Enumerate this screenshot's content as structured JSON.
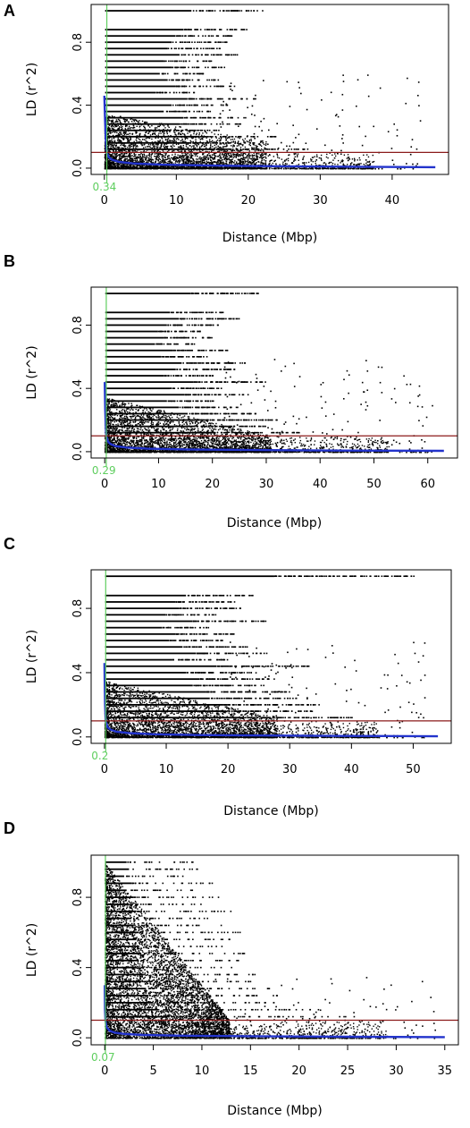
{
  "figure": {
    "panels": [
      "A",
      "B",
      "C",
      "D"
    ]
  },
  "colors": {
    "points": "#000000",
    "decay_curve": "#2233cc",
    "threshold_line": "#8b1a1a",
    "decay_distance_line": "#5fce5f",
    "axes": "#000000"
  },
  "chart_data": [
    {
      "panel": "A",
      "type": "scatter",
      "xlabel": "Distance (Mbp)",
      "ylabel": "LD (r^2)",
      "xlim": [
        0,
        46
      ],
      "ylim": [
        0,
        1
      ],
      "xticks": [
        0,
        10,
        20,
        30,
        40
      ],
      "yticks": [
        0.0,
        0.4,
        0.8
      ],
      "threshold_r2": 0.1,
      "decay_distance": 0.34,
      "decay_label": "0.34",
      "series": [
        {
          "kind": "points",
          "color": "#000000",
          "dense_until_mbp": 16,
          "tail_max_mbp": 44,
          "band_levels_r2": [
            1.0,
            0.88,
            0.84,
            0.8,
            0.76,
            0.72,
            0.68,
            0.64,
            0.6,
            0.56,
            0.52,
            0.48,
            0.44,
            0.4,
            0.36,
            0.32,
            0.28,
            0.24,
            0.2,
            0.16,
            0.12
          ],
          "band_extent_mbp": [
            22,
            20,
            18,
            17,
            16,
            19,
            15,
            17,
            14,
            16,
            18,
            13,
            21,
            17,
            15,
            20,
            19,
            16,
            24,
            22,
            28
          ]
        },
        {
          "kind": "fitted_curve",
          "color": "#2233cc",
          "x": [
            0.0,
            0.1,
            0.2,
            0.34,
            0.6,
            1,
            2,
            4,
            8,
            15,
            25,
            35,
            46
          ],
          "y": [
            0.46,
            0.3,
            0.18,
            0.1,
            0.07,
            0.055,
            0.04,
            0.03,
            0.022,
            0.016,
            0.012,
            0.009,
            0.006
          ]
        }
      ]
    },
    {
      "panel": "B",
      "type": "scatter",
      "xlabel": "Distance (Mbp)",
      "ylabel": "LD (r^2)",
      "xlim": [
        0,
        63
      ],
      "ylim": [
        0,
        1
      ],
      "xticks": [
        0,
        10,
        20,
        30,
        40,
        50,
        60
      ],
      "yticks": [
        0.0,
        0.4,
        0.8
      ],
      "threshold_r2": 0.1,
      "decay_distance": 0.29,
      "decay_label": "0.29",
      "series": [
        {
          "kind": "points",
          "color": "#000000",
          "dense_until_mbp": 22,
          "tail_max_mbp": 62,
          "band_levels_r2": [
            1.0,
            0.88,
            0.84,
            0.8,
            0.76,
            0.72,
            0.68,
            0.64,
            0.6,
            0.56,
            0.52,
            0.48,
            0.44,
            0.4,
            0.36,
            0.32,
            0.28,
            0.24,
            0.2,
            0.16,
            0.12
          ],
          "band_extent_mbp": [
            29,
            22,
            25,
            21,
            18,
            20,
            17,
            23,
            19,
            26,
            24,
            20,
            30,
            22,
            27,
            21,
            25,
            28,
            32,
            30,
            36
          ]
        },
        {
          "kind": "fitted_curve",
          "color": "#2233cc",
          "x": [
            0.0,
            0.1,
            0.2,
            0.29,
            0.6,
            1,
            2,
            4,
            8,
            15,
            30,
            45,
            63
          ],
          "y": [
            0.44,
            0.26,
            0.15,
            0.1,
            0.065,
            0.05,
            0.035,
            0.026,
            0.019,
            0.014,
            0.01,
            0.007,
            0.005
          ]
        }
      ]
    },
    {
      "panel": "C",
      "type": "scatter",
      "xlabel": "Distance (Mbp)",
      "ylabel": "LD (r^2)",
      "xlim": [
        0,
        54
      ],
      "ylim": [
        0,
        1
      ],
      "xticks": [
        0,
        10,
        20,
        30,
        40,
        50
      ],
      "yticks": [
        0.0,
        0.4,
        0.8
      ],
      "threshold_r2": 0.1,
      "decay_distance": 0.2,
      "decay_label": "0.2",
      "series": [
        {
          "kind": "points",
          "color": "#000000",
          "dense_until_mbp": 20,
          "tail_max_mbp": 52,
          "band_levels_r2": [
            1.0,
            0.88,
            0.84,
            0.8,
            0.76,
            0.72,
            0.68,
            0.64,
            0.6,
            0.56,
            0.52,
            0.48,
            0.44,
            0.4,
            0.36,
            0.32,
            0.28,
            0.24,
            0.2,
            0.16,
            0.12
          ],
          "band_extent_mbp": [
            50,
            24,
            21,
            22,
            18,
            26,
            17,
            21,
            19,
            23,
            27,
            20,
            33,
            24,
            28,
            26,
            30,
            31,
            35,
            34,
            40
          ]
        },
        {
          "kind": "fitted_curve",
          "color": "#2233cc",
          "x": [
            0.0,
            0.05,
            0.1,
            0.2,
            0.5,
            1,
            2,
            4,
            8,
            15,
            25,
            40,
            54
          ],
          "y": [
            0.46,
            0.3,
            0.2,
            0.1,
            0.06,
            0.045,
            0.032,
            0.024,
            0.017,
            0.012,
            0.009,
            0.006,
            0.004
          ]
        }
      ]
    },
    {
      "panel": "D",
      "type": "scatter",
      "xlabel": "Distance (Mbp)",
      "ylabel": "LD (r^2)",
      "xlim": [
        0,
        35
      ],
      "ylim": [
        0,
        1
      ],
      "xticks": [
        0,
        5,
        10,
        15,
        20,
        25,
        30,
        35
      ],
      "yticks": [
        0.0,
        0.4,
        0.8
      ],
      "threshold_r2": 0.1,
      "decay_distance": 0.07,
      "decay_label": "0.07",
      "series": [
        {
          "kind": "points",
          "color": "#000000",
          "dense_until_mbp": 4,
          "tail_max_mbp": 34,
          "band_levels_r2": [
            1.0,
            0.96,
            0.92,
            0.88,
            0.84,
            0.8,
            0.76,
            0.72,
            0.68,
            0.64,
            0.6,
            0.56,
            0.52,
            0.48,
            0.44,
            0.4,
            0.36,
            0.32,
            0.28,
            0.24,
            0.2,
            0.16,
            0.12
          ],
          "band_extent_mbp": [
            9,
            10,
            8,
            11,
            9,
            12,
            10,
            13,
            11,
            12,
            14,
            13,
            12,
            15,
            14,
            13,
            16,
            15,
            17,
            18,
            20,
            22,
            26
          ]
        },
        {
          "kind": "fitted_curve",
          "color": "#2233cc",
          "x": [
            0.0,
            0.03,
            0.07,
            0.2,
            0.5,
            1,
            2,
            4,
            8,
            15,
            25,
            35
          ],
          "y": [
            0.3,
            0.16,
            0.1,
            0.06,
            0.04,
            0.03,
            0.022,
            0.016,
            0.012,
            0.009,
            0.006,
            0.004
          ]
        }
      ]
    }
  ]
}
